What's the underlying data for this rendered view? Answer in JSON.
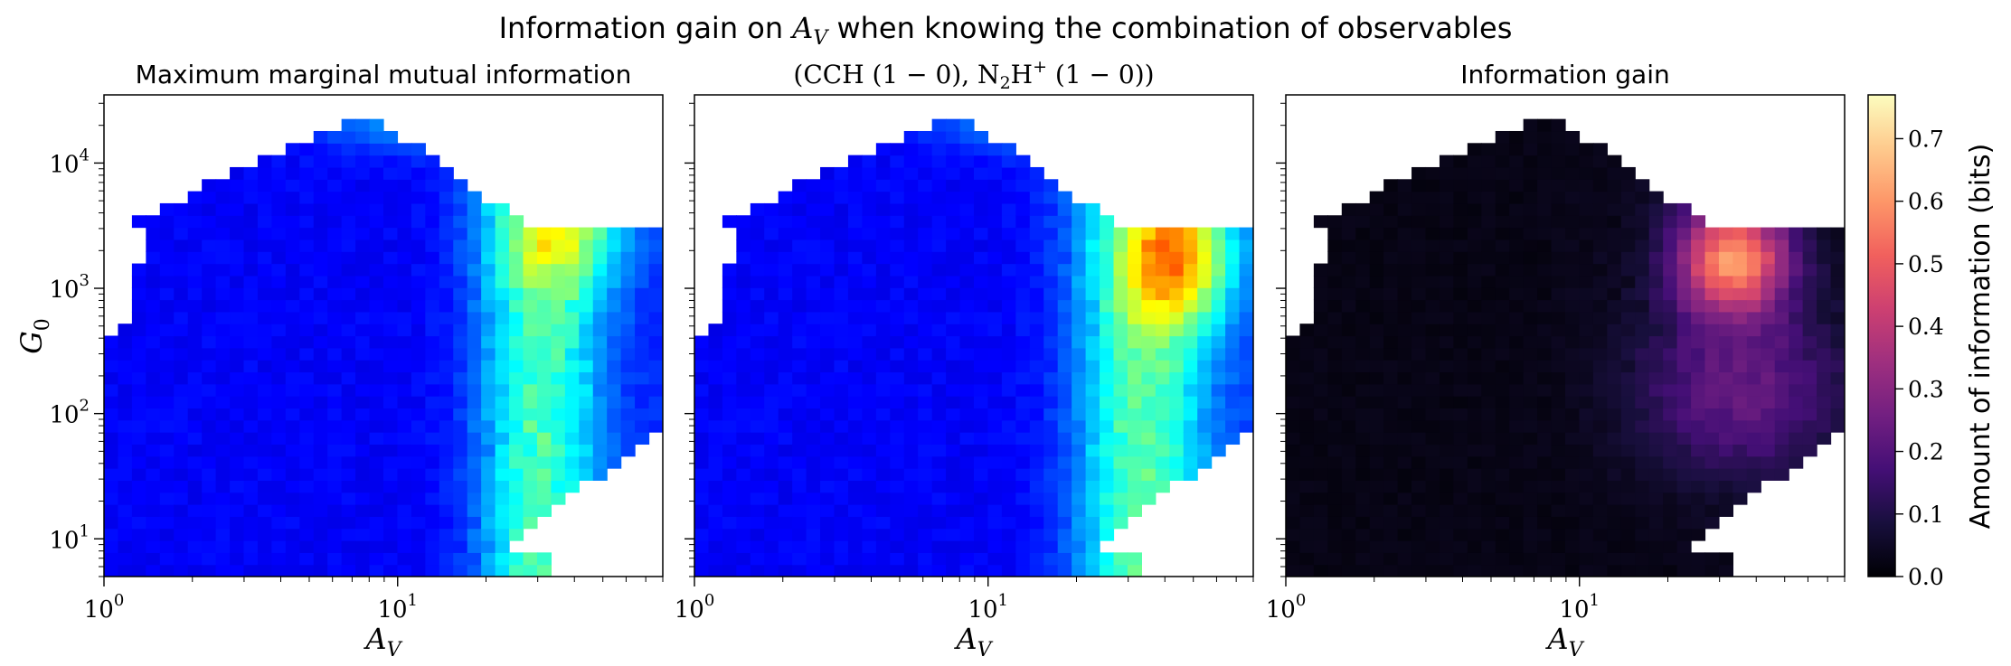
{
  "figure": {
    "suptitle": "Information gain on A_V when knowing the combination of observables"
  },
  "colors": {
    "jet_stops": [
      "#00007f",
      "#0000ff",
      "#007fff",
      "#00ffff",
      "#7fff7f",
      "#ffff00",
      "#ff7f00",
      "#ff0000",
      "#7f0000"
    ],
    "magma_stops": [
      "#000004",
      "#180f3d",
      "#440f76",
      "#721f81",
      "#9e2f7f",
      "#cd4071",
      "#f1605d",
      "#fd9668",
      "#feca8d",
      "#fcfdbf"
    ],
    "background": "#ffffff"
  },
  "chart_data": [
    {
      "type": "heatmap",
      "title": "Maximum marginal mutual information",
      "xlabel": "A_V",
      "ylabel": "G_0",
      "x_scale": "log",
      "y_scale": "log",
      "xlim": [
        1,
        80
      ],
      "ylim": [
        5,
        35000
      ],
      "x_ticks": [
        {
          "value": 1,
          "label": "10^0"
        },
        {
          "value": 10,
          "label": "10^1"
        }
      ],
      "y_ticks": [
        {
          "value": 10,
          "label": "10^1"
        },
        {
          "value": 100,
          "label": "10^2"
        },
        {
          "value": 1000,
          "label": "10^3"
        },
        {
          "value": 10000,
          "label": "10^4"
        }
      ],
      "colormap": "jet",
      "value_range": [
        0,
        1.0
      ],
      "cells": {
        "nx": 40,
        "ny": 40,
        "profile": "marginal"
      }
    },
    {
      "type": "heatmap",
      "title": "(CCH (1 − 0), N2H+ (1 − 0))",
      "xlabel": "A_V",
      "x_scale": "log",
      "y_scale": "log",
      "xlim": [
        1,
        80
      ],
      "ylim": [
        5,
        35000
      ],
      "x_ticks": [
        {
          "value": 1,
          "label": "10^0"
        },
        {
          "value": 10,
          "label": "10^1"
        }
      ],
      "colormap": "jet",
      "value_range": [
        0,
        1.0
      ],
      "cells": {
        "nx": 40,
        "ny": 40,
        "profile": "combined"
      }
    },
    {
      "type": "heatmap",
      "title": "Information gain",
      "xlabel": "A_V",
      "x_scale": "log",
      "y_scale": "log",
      "xlim": [
        1,
        80
      ],
      "ylim": [
        5,
        35000
      ],
      "x_ticks": [
        {
          "value": 1,
          "label": "10^0"
        },
        {
          "value": 10,
          "label": "10^1"
        }
      ],
      "colormap": "magma",
      "value_range": [
        0,
        0.77
      ],
      "cells": {
        "nx": 40,
        "ny": 40,
        "profile": "gain"
      },
      "colorbar": {
        "label": "Amount of information (bits)",
        "range": [
          0,
          0.77
        ],
        "ticks": [
          "0.0",
          "0.1",
          "0.2",
          "0.3",
          "0.4",
          "0.5",
          "0.6",
          "0.7"
        ]
      }
    }
  ]
}
